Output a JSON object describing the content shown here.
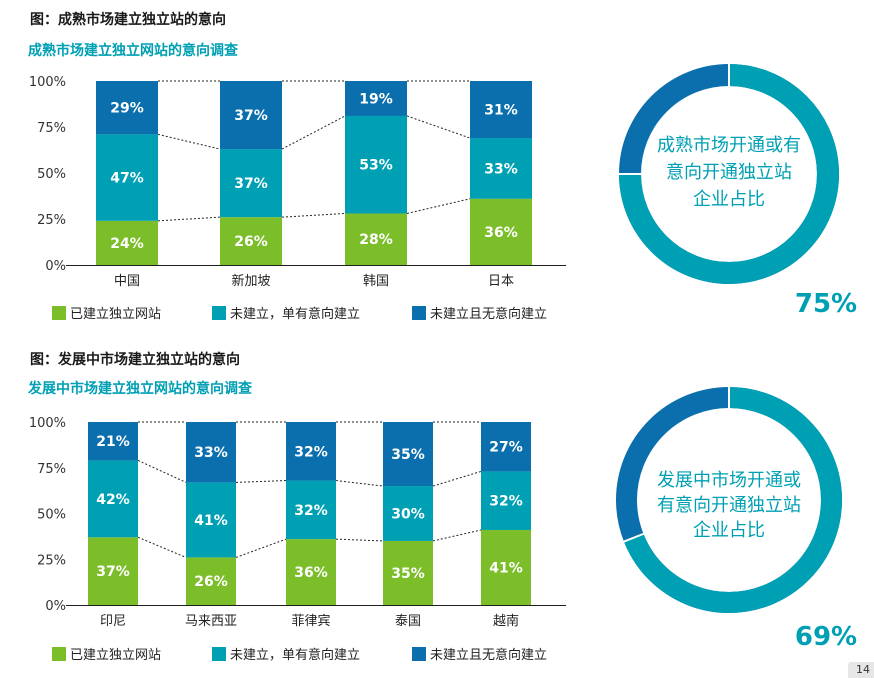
{
  "colors": {
    "established": "#7cbd2a",
    "intent": "#00a0b4",
    "no_intent": "#0b6fae",
    "accent": "#00a0b4"
  },
  "page_number": "14",
  "chart_data": [
    {
      "type": "bar",
      "stacked": true,
      "figure_title": "图：成熟市场建立独立站的意向",
      "title": "成熟市场建立独立网站的意向调查",
      "categories": [
        "中国",
        "新加坡",
        "韩国",
        "日本"
      ],
      "series": [
        {
          "name": "已建立独立网站",
          "values": [
            24,
            26,
            28,
            36
          ]
        },
        {
          "name": "未建立，单有意向建立",
          "values": [
            47,
            37,
            53,
            33
          ]
        },
        {
          "name": "未建立且无意向建立",
          "values": [
            29,
            37,
            19,
            31
          ]
        }
      ],
      "ylim": [
        0,
        100
      ],
      "yticks": [
        "0%",
        "25%",
        "50%",
        "75%",
        "100%"
      ],
      "legend": "bottom",
      "donut": {
        "label_lines": [
          "成熟市场开通或有",
          "意向开通独立站",
          "企业占比"
        ],
        "value": 75,
        "value_label": "75%"
      }
    },
    {
      "type": "bar",
      "stacked": true,
      "figure_title": "图：发展中市场建立独立站的意向",
      "title": "发展中市场建立独立网站的意向调查",
      "categories": [
        "印尼",
        "马来西亚",
        "菲律宾",
        "泰国",
        "越南"
      ],
      "series": [
        {
          "name": "已建立独立网站",
          "values": [
            37,
            26,
            36,
            35,
            41
          ]
        },
        {
          "name": "未建立，单有意向建立",
          "values": [
            42,
            41,
            32,
            30,
            32
          ]
        },
        {
          "name": "未建立且无意向建立",
          "values": [
            21,
            33,
            32,
            35,
            27
          ]
        }
      ],
      "ylim": [
        0,
        100
      ],
      "yticks": [
        "0%",
        "25%",
        "50%",
        "75%",
        "100%"
      ],
      "legend": "bottom",
      "donut": {
        "label_lines": [
          "发展中市场开通或",
          "有意向开通独立站",
          "企业占比"
        ],
        "value": 69,
        "value_label": "69%"
      }
    }
  ]
}
